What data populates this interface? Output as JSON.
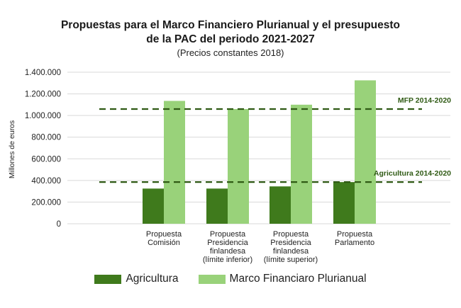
{
  "chart_data": {
    "type": "bar",
    "title_lines": [
      "Propuestas para el Marco Financiero Plurianual y el presupuesto",
      "de la PAC del periodo 2021-2027"
    ],
    "subtitle": "(Precios constantes 2018)",
    "ylabel": "Millones de euros",
    "xlabel": "",
    "ylim": [
      0,
      1400000
    ],
    "yticks": [
      "0",
      "200.000",
      "400.000",
      "600.000",
      "800.000",
      "1.000.000",
      "1.200.000",
      "1.400.000"
    ],
    "ytick_values": [
      0,
      200000,
      400000,
      600000,
      800000,
      1000000,
      1200000,
      1400000
    ],
    "categories": [
      [
        "Propuesta",
        "Comisión"
      ],
      [
        "Propuesta",
        "Presidencia",
        "finlandesa",
        "(límite inferior)"
      ],
      [
        "Propuesta",
        "Presidencia",
        "finlandesa",
        "(límite superior)"
      ],
      [
        "Propuesta",
        "Parlamento"
      ]
    ],
    "series": [
      {
        "name": "Agricultura",
        "color": "#3f7a1c",
        "values": [
          325000,
          325000,
          345000,
          385000
        ]
      },
      {
        "name": "Marco Financiaro Plurianual",
        "color": "#99d27a",
        "values": [
          1135000,
          1060000,
          1100000,
          1325000
        ]
      }
    ],
    "reference_lines": [
      {
        "label": "MFP 2014-2020",
        "value": 1060000,
        "color": "#2f5a14"
      },
      {
        "label": "Agricultura 2014-2020",
        "value": 385000,
        "color": "#2f5a14"
      }
    ],
    "grid": true,
    "legend_position": "bottom"
  }
}
